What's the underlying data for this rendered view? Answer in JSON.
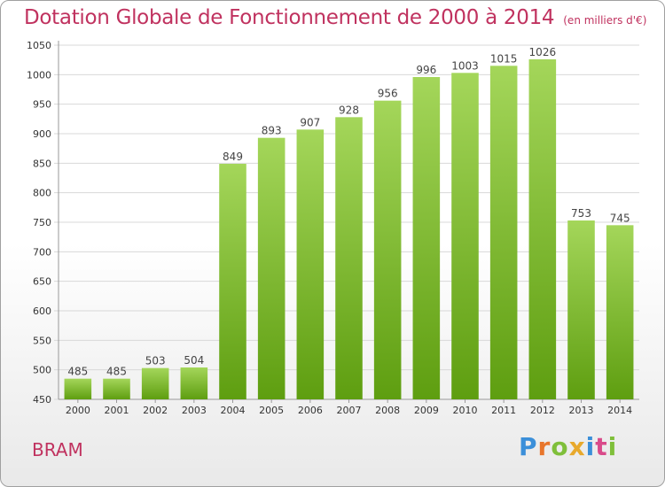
{
  "title": "Dotation Globale de Fonctionnement de 2000 à 2014",
  "unit": "(en milliers d'€)",
  "commune": "BRAM",
  "logo": {
    "letters": [
      "P",
      "r",
      "o",
      "x",
      "i",
      "t",
      "i"
    ],
    "colors": [
      "#3b8fd9",
      "#e8762c",
      "#7fbf3a",
      "#e8a92c",
      "#3b8fd9",
      "#d94b8a",
      "#7fbf3a"
    ]
  },
  "colors": {
    "title": "#c0325f",
    "bar_top": "#a4d65a",
    "bar_bottom": "#5e9e10"
  },
  "chart_data": {
    "type": "bar",
    "categories": [
      "2000",
      "2001",
      "2002",
      "2003",
      "2004",
      "2005",
      "2006",
      "2007",
      "2008",
      "2009",
      "2010",
      "2011",
      "2012",
      "2013",
      "2014"
    ],
    "values": [
      485,
      485,
      503,
      504,
      849,
      893,
      907,
      928,
      956,
      996,
      1003,
      1015,
      1026,
      753,
      745
    ],
    "ylim": [
      450,
      1050
    ],
    "yticks": [
      450,
      500,
      550,
      600,
      650,
      700,
      750,
      800,
      850,
      900,
      950,
      1000,
      1050
    ],
    "grid": true,
    "xlabel": "",
    "ylabel": ""
  }
}
